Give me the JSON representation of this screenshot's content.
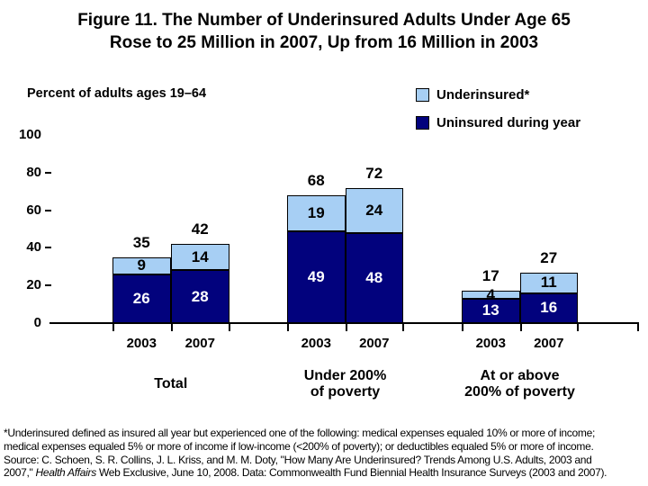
{
  "title": {
    "line1": "Figure 11. The Number of Underinsured Adults Under Age 65",
    "line2": "Rose to 25 Million in 2007, Up from 16 Million in 2003"
  },
  "axis_caption": "Percent of adults ages 19–64",
  "legend": [
    {
      "label": "Underinsured*",
      "color": "#A7CFF4"
    },
    {
      "label": "Uninsured during year",
      "color": "#02027D"
    }
  ],
  "chart_data": {
    "type": "bar",
    "stacked": true,
    "title": "Figure 11. The Number of Underinsured Adults Under Age 65 Rose to 25 Million in 2007, Up from 16 Million in 2003",
    "ylabel": "Percent of adults ages 19–64",
    "ylim": [
      0,
      100
    ],
    "yticks": [
      100,
      80,
      60,
      40,
      20,
      0
    ],
    "grid": false,
    "legend_position": "top-right",
    "colors": {
      "underinsured": "#A7CFF4",
      "uninsured": "#02027D"
    },
    "series": [
      {
        "name": "Uninsured during year",
        "key": "uninsured"
      },
      {
        "name": "Underinsured*",
        "key": "underinsured"
      }
    ],
    "groups": [
      {
        "label_lines": [
          "Total"
        ],
        "bars": [
          {
            "year": "2003",
            "uninsured": 26,
            "underinsured": 9,
            "total": 35
          },
          {
            "year": "2007",
            "uninsured": 28,
            "underinsured": 14,
            "total": 42
          }
        ]
      },
      {
        "label_lines": [
          "Under 200%",
          "of poverty"
        ],
        "bars": [
          {
            "year": "2003",
            "uninsured": 49,
            "underinsured": 19,
            "total": 68
          },
          {
            "year": "2007",
            "uninsured": 48,
            "underinsured": 24,
            "total": 72
          }
        ]
      },
      {
        "label_lines": [
          "At or above",
          "200% of poverty"
        ],
        "bars": [
          {
            "year": "2003",
            "uninsured": 13,
            "underinsured": 4,
            "total": 17
          },
          {
            "year": "2007",
            "uninsured": 16,
            "underinsured": 11,
            "total": 27
          }
        ]
      }
    ]
  },
  "footnote": {
    "lines": [
      [
        {
          "t": "*Underinsured defined as insured all year but experienced one of the following: medical expenses equaled 10% or more of income;"
        }
      ],
      [
        {
          "t": "medical expenses equaled 5% or more of income if low-income (<200% of poverty); or deductibles equaled 5% or more of income."
        }
      ],
      [
        {
          "t": "Source: C. Schoen, S. R. Collins, J. L. Kriss, and M. M. Doty, \"How Many Are Underinsured? Trends Among U.S. Adults, 2003 and"
        }
      ],
      [
        {
          "t": "2007,\" "
        },
        {
          "t": "Health Affairs",
          "i": true
        },
        {
          "t": " Web Exclusive, June 10, 2008. Data: Commonwealth Fund Biennial Health Insurance Surveys (2003 and 2007)."
        }
      ]
    ]
  }
}
